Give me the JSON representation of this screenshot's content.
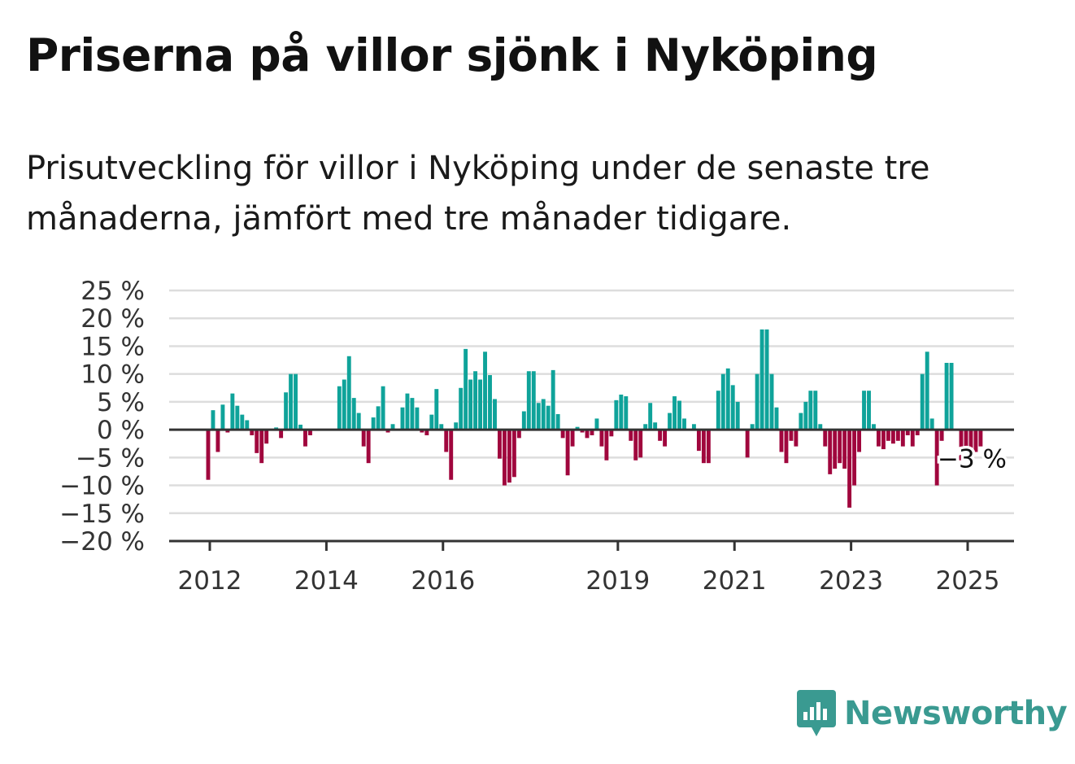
{
  "title": "Priserna på villor sjönk i Nyköping",
  "subtitle": "Prisutveckling för villor i Nyköping under de senaste tre månaderna, jämfört med tre månader tidigare.",
  "brand": {
    "name": "Newsworthy",
    "icon": "newsworthy-logo-icon"
  },
  "colors": {
    "positive": "#0fa39a",
    "negative": "#a0063d",
    "grid": "#dddddd",
    "axis": "#333333"
  },
  "chart_data": {
    "type": "bar",
    "y_unit": "%",
    "ylim": [
      -20,
      25
    ],
    "y_ticks": [
      -20,
      -15,
      -10,
      -5,
      0,
      5,
      10,
      15,
      20,
      25
    ],
    "y_tick_labels": [
      "−20 %",
      "−15 %",
      "−10 %",
      "−5 %",
      "0 %",
      "5 %",
      "10 %",
      "15 %",
      "20 %",
      "25 %"
    ],
    "x_ticks": [
      {
        "label": "2012",
        "x": 2012.0
      },
      {
        "label": "2014",
        "x": 2014.0
      },
      {
        "label": "2016",
        "x": 2016.0
      },
      {
        "label": "2019",
        "x": 2019.0
      },
      {
        "label": "2021",
        "x": 2021.0
      },
      {
        "label": "2023",
        "x": 2023.0
      },
      {
        "label": "2025",
        "x": 2025.0
      }
    ],
    "start": "2012-01",
    "values": [
      -9,
      3.5,
      -4,
      4.5,
      -0.5,
      6.5,
      4.3,
      2.7,
      1.7,
      -1,
      -4.2,
      -6,
      -2.5,
      0,
      0.4,
      -1.5,
      6.7,
      10,
      10,
      0.9,
      -3,
      -1,
      0,
      0,
      0,
      0,
      0,
      7.8,
      9,
      13.2,
      5.7,
      3,
      -3,
      -6,
      2.2,
      4.2,
      7.8,
      -0.5,
      1,
      0,
      4,
      6.5,
      5.7,
      4,
      -0.5,
      -1,
      2.7,
      7.3,
      1,
      -4,
      -9,
      1.3,
      7.5,
      14.5,
      9,
      10.5,
      9,
      14,
      9.8,
      5.5,
      -5.2,
      -10,
      -9.5,
      -8.5,
      -1.5,
      3.3,
      10.5,
      10.5,
      4.8,
      5.5,
      4.3,
      10.7,
      2.8,
      -1.5,
      -8.2,
      -3,
      0.5,
      -0.5,
      -1.5,
      -1,
      2,
      -3,
      -5.5,
      -1.2,
      5.3,
      6.3,
      6,
      -2,
      -5.5,
      -5,
      1,
      4.8,
      1.3,
      -2,
      -3,
      3,
      6,
      5.2,
      2,
      0,
      1,
      -3.8,
      -6,
      -6,
      0,
      7,
      10,
      11,
      8,
      5,
      0,
      -5,
      1,
      10,
      18,
      18,
      10,
      4,
      -4,
      -6,
      -2,
      -3,
      3,
      5,
      7,
      7,
      1,
      -3,
      -8,
      -7,
      -6,
      -7,
      -14,
      -10,
      -4,
      7,
      7,
      1,
      -3,
      -3.5,
      -2,
      -2.5,
      -2,
      -3,
      -1,
      -3,
      -1,
      10,
      14,
      2,
      -10,
      -2,
      12,
      12,
      0,
      -5.5,
      -4.5,
      -4,
      -4,
      -3
    ],
    "last_value_label": "−3 %"
  }
}
